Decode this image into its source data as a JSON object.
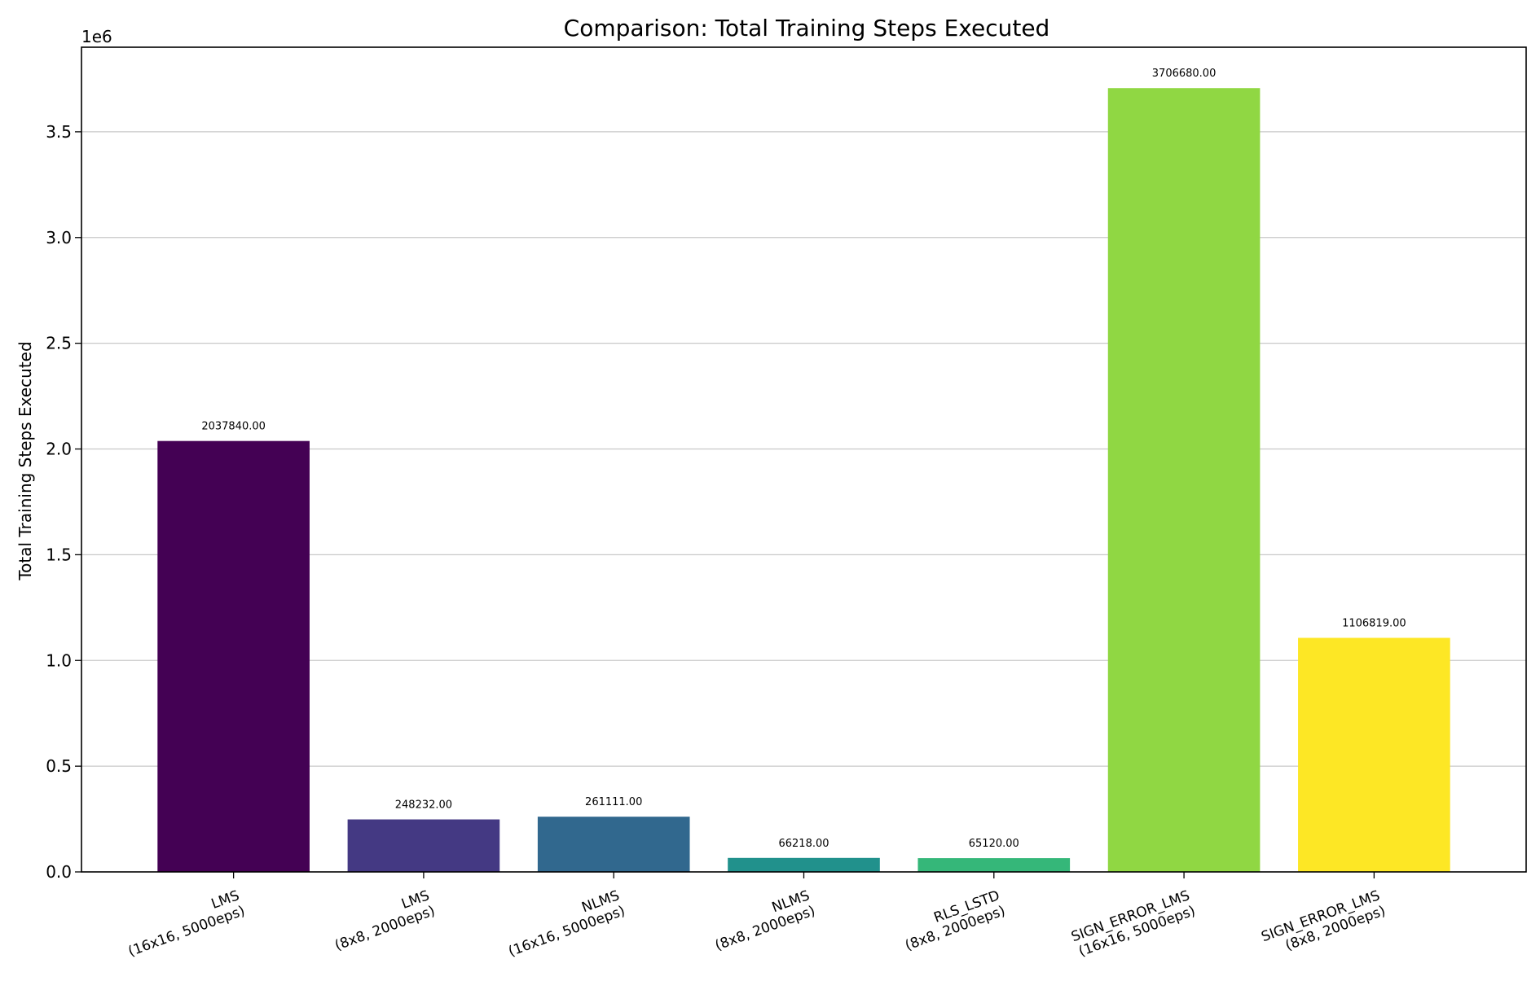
{
  "chart_data": {
    "type": "bar",
    "title": "Comparison: Total Training Steps Executed",
    "xlabel": "",
    "ylabel": "Total Training Steps Executed",
    "y_offset_label": "1e6",
    "ylim": [
      0,
      3900000
    ],
    "yticks": [
      0,
      500000,
      1000000,
      1500000,
      2000000,
      2500000,
      3000000,
      3500000
    ],
    "ytick_labels": [
      "0.0",
      "0.5",
      "1.0",
      "1.5",
      "2.0",
      "2.5",
      "3.0",
      "3.5"
    ],
    "grid": "y",
    "categories": [
      [
        "LMS",
        "(16x16, 5000eps)"
      ],
      [
        "LMS",
        "(8x8, 2000eps)"
      ],
      [
        "NLMS",
        "(16x16, 5000eps)"
      ],
      [
        "NLMS",
        "(8x8, 2000eps)"
      ],
      [
        "RLS_LSTD",
        "(8x8, 2000eps)"
      ],
      [
        "SIGN_ERROR_LMS",
        "(16x16, 5000eps)"
      ],
      [
        "SIGN_ERROR_LMS",
        "(8x8, 2000eps)"
      ]
    ],
    "values": [
      2037840,
      248232,
      261111,
      66218,
      65120,
      3706680,
      1106819
    ],
    "value_labels": [
      "2037840.00",
      "248232.00",
      "261111.00",
      "66218.00",
      "65120.00",
      "3706680.00",
      "1106819.00"
    ],
    "colors": [
      "#440154",
      "#443983",
      "#31688e",
      "#21918c",
      "#35b779",
      "#90d743",
      "#fde725"
    ]
  }
}
